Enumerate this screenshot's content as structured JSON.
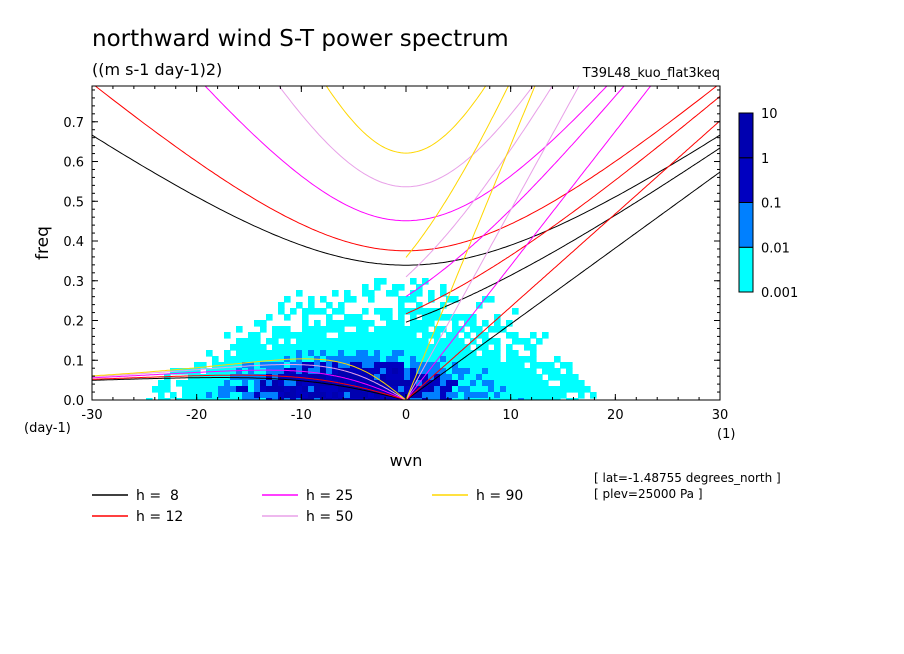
{
  "chart_data": {
    "type": "heatmap",
    "title": "northward wind S-T power spectrum",
    "subtitle": "((m s-1 day-1)2)",
    "run_label": "T39L48_kuo_flat3keq",
    "xlabel": "wvn",
    "ylabel": "freq",
    "x_unit": "(1)",
    "y_unit": "(day-1)",
    "xlim": [
      -30,
      30
    ],
    "ylim": [
      0,
      0.79
    ],
    "x_ticks": [
      -30,
      -20,
      -10,
      0,
      10,
      20,
      30
    ],
    "x_tick_labels": [
      "-30",
      "-20",
      "-10",
      "0",
      "10",
      "20",
      "30"
    ],
    "y_ticks": [
      0,
      0.1,
      0.2,
      0.3,
      0.4,
      0.5,
      0.6,
      0.7
    ],
    "y_tick_labels": [
      "0.0",
      "0.1",
      "0.2",
      "0.3",
      "0.4",
      "0.5",
      "0.6",
      "0.7"
    ],
    "levels": [
      {
        "label": "0.001",
        "color": "#00ffff"
      },
      {
        "label": "0.01",
        "color": "#0080ff"
      },
      {
        "label": "0.1",
        "color": "#0000c0"
      },
      {
        "label": "1",
        "color": "#0000b0"
      },
      {
        "label": "10",
        "color": "#4000c0"
      }
    ],
    "dispersion_curves": [
      {
        "h": "8",
        "color": "#000000"
      },
      {
        "h": "12",
        "color": "#ff0000"
      },
      {
        "h": "25",
        "color": "#ff00ff"
      },
      {
        "h": "50",
        "color": "#e8a0e8"
      },
      {
        "h": "90",
        "color": "#ffd700"
      }
    ],
    "legend": [
      {
        "label": "h =  8",
        "color": "#000000"
      },
      {
        "label": "h = 12",
        "color": "#ff0000"
      },
      {
        "label": "h = 25",
        "color": "#ff00ff"
      },
      {
        "label": "h = 50",
        "color": "#e8a0e8"
      },
      {
        "label": "h = 90",
        "color": "#ffd700"
      }
    ],
    "annotations": [
      "[ lat=-1.48755 degrees_north ]",
      "[ plev=25000 Pa ]"
    ]
  }
}
